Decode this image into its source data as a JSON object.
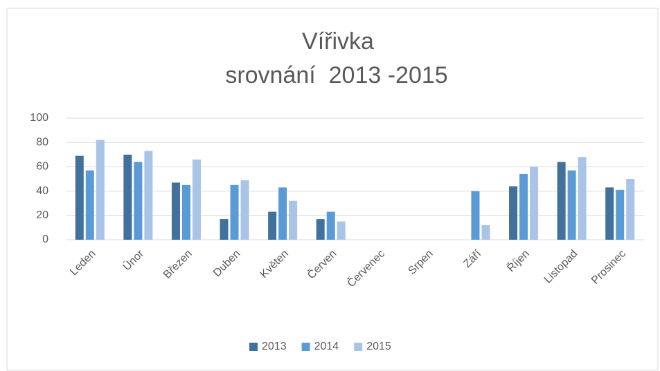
{
  "chart_data": {
    "type": "bar",
    "title": "Vířivka",
    "subtitle": "srovnání  2013 -2015",
    "categories": [
      "Leden",
      "Únor",
      "Březen",
      "Duben",
      "Květen",
      "Červen",
      "Červenec",
      "Srpen",
      "Září",
      "Říjen",
      "Listopad",
      "Prosinec"
    ],
    "series": [
      {
        "name": "2013",
        "color": "#41719c",
        "values": [
          69,
          70,
          47,
          17,
          23,
          17,
          0,
          0,
          0,
          44,
          64,
          43
        ]
      },
      {
        "name": "2014",
        "color": "#5b9bd5",
        "values": [
          57,
          64,
          45,
          45,
          43,
          23,
          0,
          0,
          40,
          54,
          57,
          41
        ]
      },
      {
        "name": "2015",
        "color": "#a9c4e6",
        "values": [
          82,
          73,
          66,
          49,
          32,
          15,
          0,
          0,
          12,
          60,
          68,
          50
        ]
      }
    ],
    "ylim": [
      0,
      100
    ],
    "yticks": [
      0,
      20,
      40,
      60,
      80,
      100
    ],
    "grid": true,
    "legend": "bottom"
  }
}
